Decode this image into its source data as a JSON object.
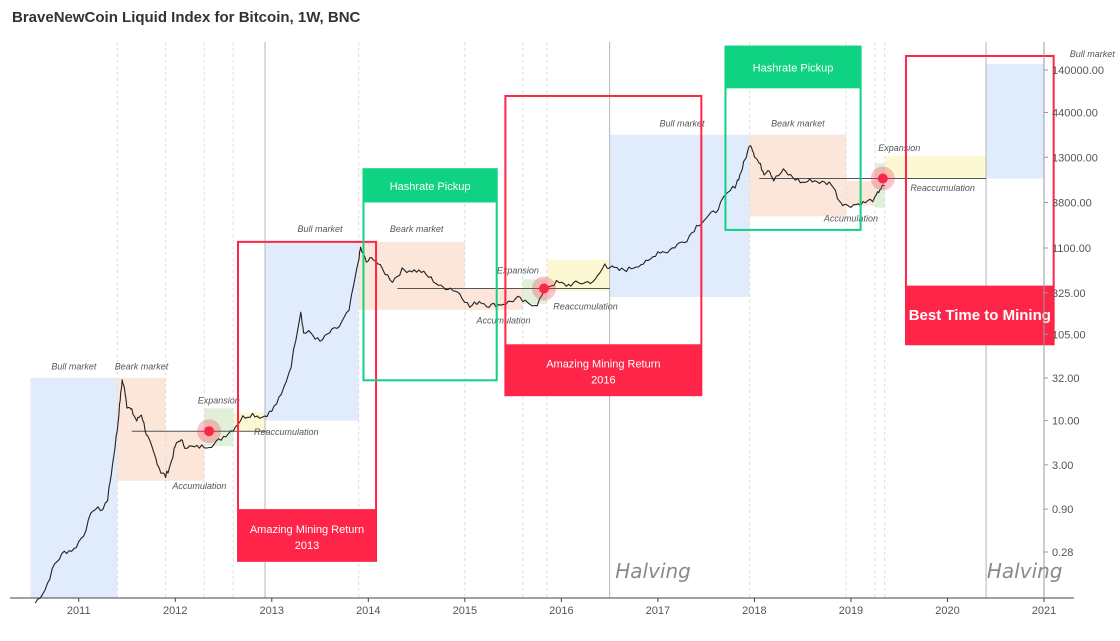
{
  "chart_data": {
    "type": "line",
    "title": "BraveNewCoin Liquid Index for Bitcoin, 1W, BNC",
    "scale": "log",
    "xlim": [
      2010.35,
      2021.0
    ],
    "ylim": [
      0.08,
      300000
    ],
    "x_ticks": [
      "2011",
      "2012",
      "2013",
      "2014",
      "2015",
      "2016",
      "2017",
      "2018",
      "2019",
      "2020",
      "2021"
    ],
    "y_ticks": [
      {
        "value": 0.28,
        "label": "0.28"
      },
      {
        "value": 0.9,
        "label": "0.90"
      },
      {
        "value": 3,
        "label": "3.00"
      },
      {
        "value": 10,
        "label": "10.00"
      },
      {
        "value": 32,
        "label": "32.00"
      },
      {
        "value": 105,
        "label": "105.00"
      },
      {
        "value": 325,
        "label": "325.00"
      },
      {
        "value": 1100,
        "label": "1100.00"
      },
      {
        "value": 3800,
        "label": "3800.00"
      },
      {
        "value": 13000,
        "label": "13000.00"
      },
      {
        "value": 44000,
        "label": "44000.00"
      },
      {
        "value": 140000,
        "label": "140000.00"
      }
    ],
    "series": [
      {
        "values": [
          [
            2010.55,
            0.07
          ],
          [
            2010.65,
            0.1
          ],
          [
            2010.75,
            0.2
          ],
          [
            2010.85,
            0.28
          ],
          [
            2010.95,
            0.3
          ],
          [
            2011.05,
            0.45
          ],
          [
            2011.15,
            0.9
          ],
          [
            2011.25,
            0.9
          ],
          [
            2011.3,
            1.2
          ],
          [
            2011.35,
            3.0
          ],
          [
            2011.4,
            8.0
          ],
          [
            2011.43,
            18.0
          ],
          [
            2011.45,
            30.0
          ],
          [
            2011.48,
            22.0
          ],
          [
            2011.5,
            15.0
          ],
          [
            2011.55,
            13.0
          ],
          [
            2011.6,
            10.0
          ],
          [
            2011.65,
            12.0
          ],
          [
            2011.7,
            7.0
          ],
          [
            2011.75,
            5.0
          ],
          [
            2011.8,
            3.5
          ],
          [
            2011.85,
            2.5
          ],
          [
            2011.9,
            2.2
          ],
          [
            2011.95,
            3.0
          ],
          [
            2012.0,
            5.0
          ],
          [
            2012.05,
            6.0
          ],
          [
            2012.1,
            5.0
          ],
          [
            2012.2,
            4.8
          ],
          [
            2012.3,
            5.0
          ],
          [
            2012.4,
            5.2
          ],
          [
            2012.5,
            6.5
          ],
          [
            2012.6,
            8.0
          ],
          [
            2012.7,
            11.0
          ],
          [
            2012.8,
            12.0
          ],
          [
            2012.9,
            11.0
          ],
          [
            2013.0,
            13.0
          ],
          [
            2013.1,
            20.0
          ],
          [
            2013.2,
            45.0
          ],
          [
            2013.3,
            200.0
          ],
          [
            2013.33,
            110.0
          ],
          [
            2013.4,
            110.0
          ],
          [
            2013.5,
            85.0
          ],
          [
            2013.6,
            110.0
          ],
          [
            2013.7,
            130.0
          ],
          [
            2013.8,
            200.0
          ],
          [
            2013.9,
            800.0
          ],
          [
            2013.92,
            1100.0
          ],
          [
            2013.98,
            750.0
          ],
          [
            2014.05,
            850.0
          ],
          [
            2014.15,
            600.0
          ],
          [
            2014.25,
            450.0
          ],
          [
            2014.35,
            600.0
          ],
          [
            2014.45,
            600.0
          ],
          [
            2014.55,
            580.0
          ],
          [
            2014.65,
            480.0
          ],
          [
            2014.75,
            380.0
          ],
          [
            2014.85,
            370.0
          ],
          [
            2014.95,
            320.0
          ],
          [
            2015.05,
            220.0
          ],
          [
            2015.15,
            260.0
          ],
          [
            2015.25,
            230.0
          ],
          [
            2015.35,
            235.0
          ],
          [
            2015.45,
            250.0
          ],
          [
            2015.55,
            280.0
          ],
          [
            2015.65,
            240.0
          ],
          [
            2015.75,
            240.0
          ],
          [
            2015.85,
            380.0
          ],
          [
            2015.95,
            430.0
          ],
          [
            2016.05,
            400.0
          ],
          [
            2016.15,
            420.0
          ],
          [
            2016.25,
            430.0
          ],
          [
            2016.35,
            450.0
          ],
          [
            2016.45,
            700.0
          ],
          [
            2016.5,
            650.0
          ],
          [
            2016.6,
            600.0
          ],
          [
            2016.7,
            620.0
          ],
          [
            2016.8,
            700.0
          ],
          [
            2016.9,
            750.0
          ],
          [
            2017.0,
            1000.0
          ],
          [
            2017.1,
            1000.0
          ],
          [
            2017.2,
            1200.0
          ],
          [
            2017.3,
            1400.0
          ],
          [
            2017.4,
            2000.0
          ],
          [
            2017.5,
            2500.0
          ],
          [
            2017.6,
            3000.0
          ],
          [
            2017.7,
            4500.0
          ],
          [
            2017.8,
            6000.0
          ],
          [
            2017.85,
            8000.0
          ],
          [
            2017.9,
            12000.0
          ],
          [
            2017.96,
            19000.0
          ],
          [
            2018.0,
            14000.0
          ],
          [
            2018.05,
            11000.0
          ],
          [
            2018.1,
            8500.0
          ],
          [
            2018.15,
            9500.0
          ],
          [
            2018.2,
            7000.0
          ],
          [
            2018.3,
            9000.0
          ],
          [
            2018.4,
            7500.0
          ],
          [
            2018.5,
            6500.0
          ],
          [
            2018.6,
            7000.0
          ],
          [
            2018.7,
            6500.0
          ],
          [
            2018.8,
            6400.0
          ],
          [
            2018.88,
            4000.0
          ],
          [
            2018.95,
            3500.0
          ],
          [
            2019.05,
            3600.0
          ],
          [
            2019.15,
            3800.0
          ],
          [
            2019.25,
            4200.0
          ],
          [
            2019.3,
            5500.0
          ],
          [
            2019.35,
            6000.0
          ]
        ]
      }
    ],
    "phase_bands": [
      {
        "x0": 2010.5,
        "x1": 2011.4,
        "y0": 0.08,
        "y1": 32,
        "color": "#dbe8fb"
      },
      {
        "x0": 2011.4,
        "x1": 2011.9,
        "y0": 1.95,
        "y1": 32,
        "color": "#fbe1d2"
      },
      {
        "x0": 2011.9,
        "x1": 2012.3,
        "y0": 1.95,
        "y1": 7.5,
        "color": "#fbe1d2"
      },
      {
        "x0": 2012.3,
        "x1": 2012.6,
        "y0": 5,
        "y1": 14,
        "color": "#dcefd2"
      },
      {
        "x0": 2012.6,
        "x1": 2012.93,
        "y0": 7.5,
        "y1": 12.5,
        "color": "#fcf7cc"
      },
      {
        "x0": 2012.93,
        "x1": 2013.9,
        "y0": 10,
        "y1": 1300,
        "color": "#dbe8fb"
      },
      {
        "x0": 2013.9,
        "x1": 2015.0,
        "y0": 205,
        "y1": 1300,
        "color": "#fbe1d2"
      },
      {
        "x0": 2015.0,
        "x1": 2015.6,
        "y0": 205,
        "y1": 365,
        "color": "#fbe1d2"
      },
      {
        "x0": 2015.6,
        "x1": 2015.85,
        "y0": 240,
        "y1": 470,
        "color": "#dcefd2"
      },
      {
        "x0": 2015.85,
        "x1": 2016.5,
        "y0": 340,
        "y1": 800,
        "color": "#fcf7cc"
      },
      {
        "x0": 2016.5,
        "x1": 2017.95,
        "y0": 290,
        "y1": 24000,
        "color": "#dbe8fb"
      },
      {
        "x0": 2017.95,
        "x1": 2018.95,
        "y0": 2600,
        "y1": 24000,
        "color": "#fbe1d2"
      },
      {
        "x0": 2018.95,
        "x1": 2019.25,
        "y0": 3500,
        "y1": 6800,
        "color": "#fbe1d2"
      },
      {
        "x0": 2019.25,
        "x1": 2019.35,
        "y0": 3300,
        "y1": 11000,
        "color": "#dcefd2"
      },
      {
        "x0": 2019.35,
        "x1": 2020.4,
        "y0": 7300,
        "y1": 13500,
        "color": "#fcf7cc"
      },
      {
        "x0": 2020.4,
        "x1": 2021.0,
        "y0": 7300,
        "y1": 165000,
        "color": "#dbe8fb"
      }
    ],
    "phase_labels": [
      {
        "text": "Bull market",
        "x": 2010.95,
        "y": 40
      },
      {
        "text": "Beark market",
        "x": 2011.65,
        "y": 40
      },
      {
        "text": "Expansion",
        "x": 2012.45,
        "y": 16
      },
      {
        "text": "Reaccumulation",
        "x": 2013.15,
        "y": 6.8
      },
      {
        "text": "Accumulation",
        "x": 2012.25,
        "y": 1.55
      },
      {
        "text": "Bull market",
        "x": 2013.5,
        "y": 1700
      },
      {
        "text": "Beark market",
        "x": 2014.5,
        "y": 1700
      },
      {
        "text": "Expansion",
        "x": 2015.55,
        "y": 550
      },
      {
        "text": "Reaccumulation",
        "x": 2016.25,
        "y": 205
      },
      {
        "text": "Accumulation",
        "x": 2015.4,
        "y": 140
      },
      {
        "text": "Bull market",
        "x": 2017.25,
        "y": 30000
      },
      {
        "text": "Beark market",
        "x": 2018.45,
        "y": 30000
      },
      {
        "text": "Expansion",
        "x": 2019.5,
        "y": 15500
      },
      {
        "text": "Reaccumulation",
        "x": 2019.95,
        "y": 5200
      },
      {
        "text": "Accumulation",
        "x": 2019.0,
        "y": 2250
      },
      {
        "text": "Bull market",
        "x": 2021.5,
        "y": 200000
      }
    ],
    "levels": [
      {
        "x0": 2011.55,
        "x1": 2012.95,
        "y": 7.5
      },
      {
        "x0": 2014.3,
        "x1": 2016.5,
        "y": 365
      },
      {
        "x0": 2018.05,
        "x1": 2020.4,
        "y": 7300
      }
    ],
    "vlines_solid": [
      2012.93,
      2016.5,
      2020.4
    ],
    "vlines_dashed": [
      2011.4,
      2011.9,
      2012.3,
      2012.6,
      2013.9,
      2015.0,
      2015.6,
      2015.85,
      2017.95,
      2018.95,
      2019.25,
      2019.35
    ],
    "markers": [
      {
        "x": 2012.35,
        "y": 7.5
      },
      {
        "x": 2015.82,
        "y": 365
      },
      {
        "x": 2019.33,
        "y": 7300
      }
    ],
    "halving_labels": [
      {
        "text": "Halving",
        "x": 2016.95
      },
      {
        "text": "Halving",
        "x": 2020.8
      }
    ],
    "annotations": [
      {
        "type": "mining-return",
        "color": "#fe2549",
        "x0": 2012.65,
        "x1": 2014.08,
        "y0": 0.22,
        "y1": 1300,
        "label_top_y": 0.9,
        "line1": "Amazing Mining Return",
        "line2": "2013"
      },
      {
        "type": "hashrate",
        "color": "#10d283",
        "x0": 2013.95,
        "x1": 2015.33,
        "y0": 30,
        "y1": 9400,
        "label_bottom_y": 3800,
        "line1": "Hashrate Pickup"
      },
      {
        "type": "mining-return",
        "color": "#fe2549",
        "x0": 2015.42,
        "x1": 2017.45,
        "y0": 20,
        "y1": 69000,
        "label_top_y": 80,
        "line1": "Amazing Mining Return",
        "line2": "2016"
      },
      {
        "type": "hashrate",
        "color": "#10d283",
        "x0": 2017.7,
        "x1": 2019.1,
        "y0": 1800,
        "y1": 265000,
        "label_bottom_y": 85000,
        "line1": "Hashrate Pickup"
      },
      {
        "type": "best-time",
        "color": "#fe2549",
        "x0": 2019.57,
        "x1": 2021.1,
        "y0": 80,
        "y1": 205000,
        "label_top_y": 395,
        "line1": "Best Time to Mining"
      }
    ]
  },
  "colors": {
    "price_line": "#222222",
    "marker": "#fe2549",
    "grid": "#dddddd",
    "axis": "#444444"
  }
}
